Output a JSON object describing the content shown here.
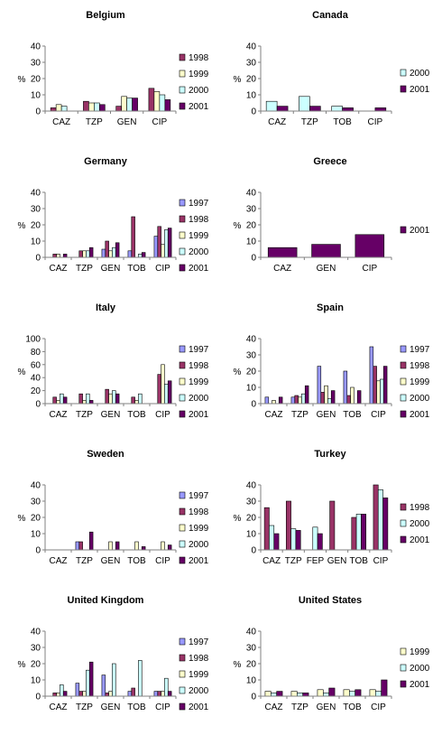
{
  "colors": {
    "1997": "#9999ff",
    "1998": "#993366",
    "1999": "#ffffcc",
    "2000": "#ccffff",
    "2001": "#660066",
    "axis": "#808080"
  },
  "chart_data": [
    {
      "type": "bar",
      "title": "Belgium",
      "ylabel": "%",
      "ylim": [
        0,
        40
      ],
      "yticks": [
        0,
        10,
        20,
        30,
        40
      ],
      "categories": [
        "CAZ",
        "TZP",
        "GEN",
        "CIP"
      ],
      "legend_position": "right",
      "series": [
        {
          "name": "1998",
          "values": [
            2,
            6,
            3,
            14
          ]
        },
        {
          "name": "1999",
          "values": [
            4,
            5,
            9,
            12
          ]
        },
        {
          "name": "2000",
          "values": [
            3,
            5,
            8,
            10
          ]
        },
        {
          "name": "2001",
          "values": [
            0,
            4,
            8,
            7
          ]
        }
      ]
    },
    {
      "type": "bar",
      "title": "Canada",
      "ylabel": "%",
      "ylim": [
        0,
        40
      ],
      "yticks": [
        0,
        10,
        20,
        30,
        40
      ],
      "categories": [
        "CAZ",
        "TZP",
        "TOB",
        "CIP"
      ],
      "legend_position": "right",
      "series": [
        {
          "name": "2000",
          "values": [
            6,
            9,
            3,
            0
          ]
        },
        {
          "name": "2001",
          "values": [
            3,
            3,
            2,
            2
          ]
        }
      ]
    },
    {
      "type": "bar",
      "title": "Germany",
      "ylabel": "%",
      "ylim": [
        0,
        40
      ],
      "yticks": [
        0,
        10,
        20,
        30,
        40
      ],
      "categories": [
        "CAZ",
        "TZP",
        "GEN",
        "TOB",
        "CIP"
      ],
      "legend_position": "right",
      "series": [
        {
          "name": "1997",
          "values": [
            0,
            0,
            5,
            4,
            13
          ]
        },
        {
          "name": "1998",
          "values": [
            2,
            4,
            10,
            25,
            19
          ]
        },
        {
          "name": "1999",
          "values": [
            2,
            4,
            4,
            0,
            8
          ]
        },
        {
          "name": "2000",
          "values": [
            0,
            4,
            6,
            2,
            17
          ]
        },
        {
          "name": "2001",
          "values": [
            2,
            6,
            9,
            3,
            18
          ]
        }
      ]
    },
    {
      "type": "bar",
      "title": "Greece",
      "ylabel": "%",
      "ylim": [
        0,
        40
      ],
      "yticks": [
        0,
        10,
        20,
        30,
        40
      ],
      "categories": [
        "CAZ",
        "GEN",
        "CIP"
      ],
      "legend_position": "right",
      "series": [
        {
          "name": "2001",
          "values": [
            6,
            8,
            14
          ]
        }
      ]
    },
    {
      "type": "bar",
      "title": "Italy",
      "ylabel": "%",
      "ylim": [
        0,
        100
      ],
      "yticks": [
        0,
        20,
        40,
        60,
        80,
        100
      ],
      "categories": [
        "CAZ",
        "TZP",
        "GEN",
        "TOB",
        "CIP"
      ],
      "legend_position": "right",
      "series": [
        {
          "name": "1997",
          "values": [
            0,
            0,
            0,
            0,
            0
          ]
        },
        {
          "name": "1998",
          "values": [
            10,
            15,
            22,
            10,
            45
          ]
        },
        {
          "name": "1999",
          "values": [
            5,
            5,
            15,
            5,
            60
          ]
        },
        {
          "name": "2000",
          "values": [
            15,
            15,
            20,
            15,
            30
          ]
        },
        {
          "name": "2001",
          "values": [
            10,
            5,
            15,
            0,
            35
          ]
        }
      ]
    },
    {
      "type": "bar",
      "title": "Spain",
      "ylabel": "%",
      "ylim": [
        0,
        40
      ],
      "yticks": [
        0,
        10,
        20,
        30,
        40
      ],
      "categories": [
        "CAZ",
        "TZP",
        "GEN",
        "TOB",
        "CIP"
      ],
      "legend_position": "right",
      "series": [
        {
          "name": "1997",
          "values": [
            4,
            4,
            23,
            20,
            35
          ]
        },
        {
          "name": "1998",
          "values": [
            0,
            5,
            7,
            5,
            23
          ]
        },
        {
          "name": "1999",
          "values": [
            2,
            4,
            11,
            10,
            14
          ]
        },
        {
          "name": "2000",
          "values": [
            0,
            6,
            3,
            0,
            15
          ]
        },
        {
          "name": "2001",
          "values": [
            4,
            11,
            8,
            8,
            23
          ]
        }
      ]
    },
    {
      "type": "bar",
      "title": "Sweden",
      "ylabel": "%",
      "ylim": [
        0,
        40
      ],
      "yticks": [
        0,
        10,
        20,
        30,
        40
      ],
      "categories": [
        "CAZ",
        "TZP",
        "GEN",
        "TOB",
        "CIP"
      ],
      "legend_position": "right",
      "series": [
        {
          "name": "1997",
          "values": [
            0,
            5,
            0,
            0,
            0
          ]
        },
        {
          "name": "1998",
          "values": [
            0,
            5,
            0,
            0,
            0
          ]
        },
        {
          "name": "1999",
          "values": [
            0,
            0,
            5,
            5,
            5
          ]
        },
        {
          "name": "2000",
          "values": [
            0,
            0,
            0,
            0,
            0
          ]
        },
        {
          "name": "2001",
          "values": [
            0,
            11,
            5,
            2,
            3
          ]
        }
      ]
    },
    {
      "type": "bar",
      "title": "Turkey",
      "ylabel": "%",
      "ylim": [
        0,
        40
      ],
      "yticks": [
        0,
        10,
        20,
        30,
        40
      ],
      "categories": [
        "CAZ",
        "TZP",
        "FEP",
        "GEN",
        "TOB",
        "CIP"
      ],
      "legend_position": "right",
      "series": [
        {
          "name": "1998",
          "values": [
            26,
            30,
            0,
            30,
            20,
            40
          ]
        },
        {
          "name": "2000",
          "values": [
            15,
            13,
            14,
            0,
            22,
            37
          ]
        },
        {
          "name": "2001",
          "values": [
            10,
            12,
            10,
            0,
            22,
            32
          ]
        }
      ]
    },
    {
      "type": "bar",
      "title": "United Kingdom",
      "ylabel": "%",
      "ylim": [
        0,
        40
      ],
      "yticks": [
        0,
        10,
        20,
        30,
        40
      ],
      "categories": [
        "CAZ",
        "TZP",
        "GEN",
        "TOB",
        "CIP"
      ],
      "legend_position": "right",
      "series": [
        {
          "name": "1997",
          "values": [
            0,
            8,
            13,
            3,
            3
          ]
        },
        {
          "name": "1998",
          "values": [
            2,
            3,
            2,
            5,
            3
          ]
        },
        {
          "name": "1999",
          "values": [
            2,
            3,
            3,
            0,
            3
          ]
        },
        {
          "name": "2000",
          "values": [
            7,
            16,
            20,
            22,
            11
          ]
        },
        {
          "name": "2001",
          "values": [
            3,
            21,
            0,
            0,
            3
          ]
        }
      ]
    },
    {
      "type": "bar",
      "title": "United States",
      "ylabel": "%",
      "ylim": [
        0,
        40
      ],
      "yticks": [
        0,
        10,
        20,
        30,
        40
      ],
      "categories": [
        "CAZ",
        "TZP",
        "GEN",
        "TOB",
        "CIP"
      ],
      "legend_position": "right",
      "series": [
        {
          "name": "1999",
          "values": [
            3,
            3,
            4,
            4,
            4
          ]
        },
        {
          "name": "2000",
          "values": [
            2,
            2,
            2,
            3,
            3
          ]
        },
        {
          "name": "2001",
          "values": [
            3,
            2,
            5,
            4,
            10
          ]
        }
      ]
    }
  ]
}
